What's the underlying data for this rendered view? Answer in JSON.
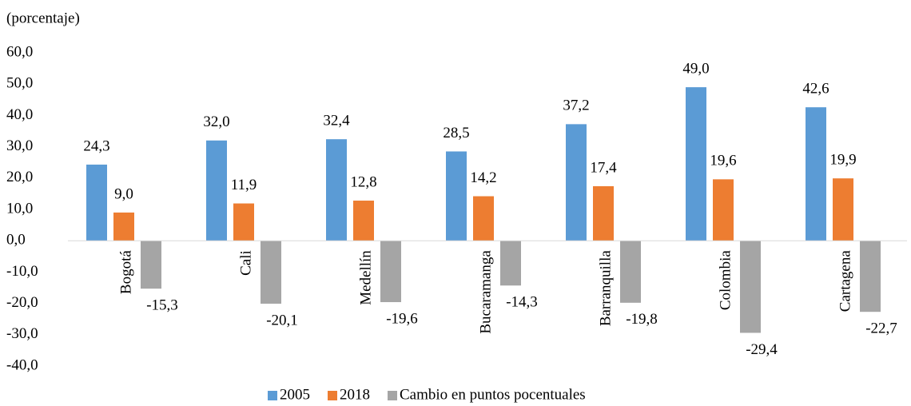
{
  "chart_data": {
    "type": "bar",
    "subtitle": "(porcentaje)",
    "categories": [
      "Bogotá",
      "Cali",
      "Medellín",
      "Bucaramanga",
      "Barranquilla",
      "Colombia",
      "Cartagena"
    ],
    "series": [
      {
        "name": "2005",
        "color": "#5b9bd5",
        "values": [
          24.3,
          32.0,
          32.4,
          28.5,
          37.2,
          49.0,
          42.6
        ],
        "value_labels": [
          "24,3",
          "32,0",
          "32,4",
          "28,5",
          "37,2",
          "49,0",
          "42,6"
        ]
      },
      {
        "name": "2018",
        "color": "#ed7d31",
        "values": [
          9.0,
          11.9,
          12.8,
          14.2,
          17.4,
          19.6,
          19.9
        ],
        "value_labels": [
          "9,0",
          "11,9",
          "12,8",
          "14,2",
          "17,4",
          "19,6",
          "19,9"
        ]
      },
      {
        "name": "Cambio en puntos pocentuales",
        "color": "#a5a5a5",
        "values": [
          -15.3,
          -20.1,
          -19.6,
          -14.3,
          -19.8,
          -29.4,
          -22.7
        ],
        "value_labels": [
          "-15,3",
          "-20,1",
          "-19,6",
          "-14,3",
          "-19,8",
          "-29,4",
          "-22,7"
        ]
      }
    ],
    "ylim": [
      -40,
      60
    ],
    "yticks": [
      {
        "value": -40,
        "label": "-40,0"
      },
      {
        "value": -30,
        "label": "-30,0"
      },
      {
        "value": -20,
        "label": "-20,0"
      },
      {
        "value": -10,
        "label": "-10,0"
      },
      {
        "value": 0,
        "label": "0,0"
      },
      {
        "value": 10,
        "label": "10,0"
      },
      {
        "value": 20,
        "label": "20,0"
      },
      {
        "value": 30,
        "label": "30,0"
      },
      {
        "value": 40,
        "label": "40,0"
      },
      {
        "value": 50,
        "label": "50,0"
      },
      {
        "value": 60,
        "label": "60,0"
      }
    ],
    "legend": "bottom"
  }
}
